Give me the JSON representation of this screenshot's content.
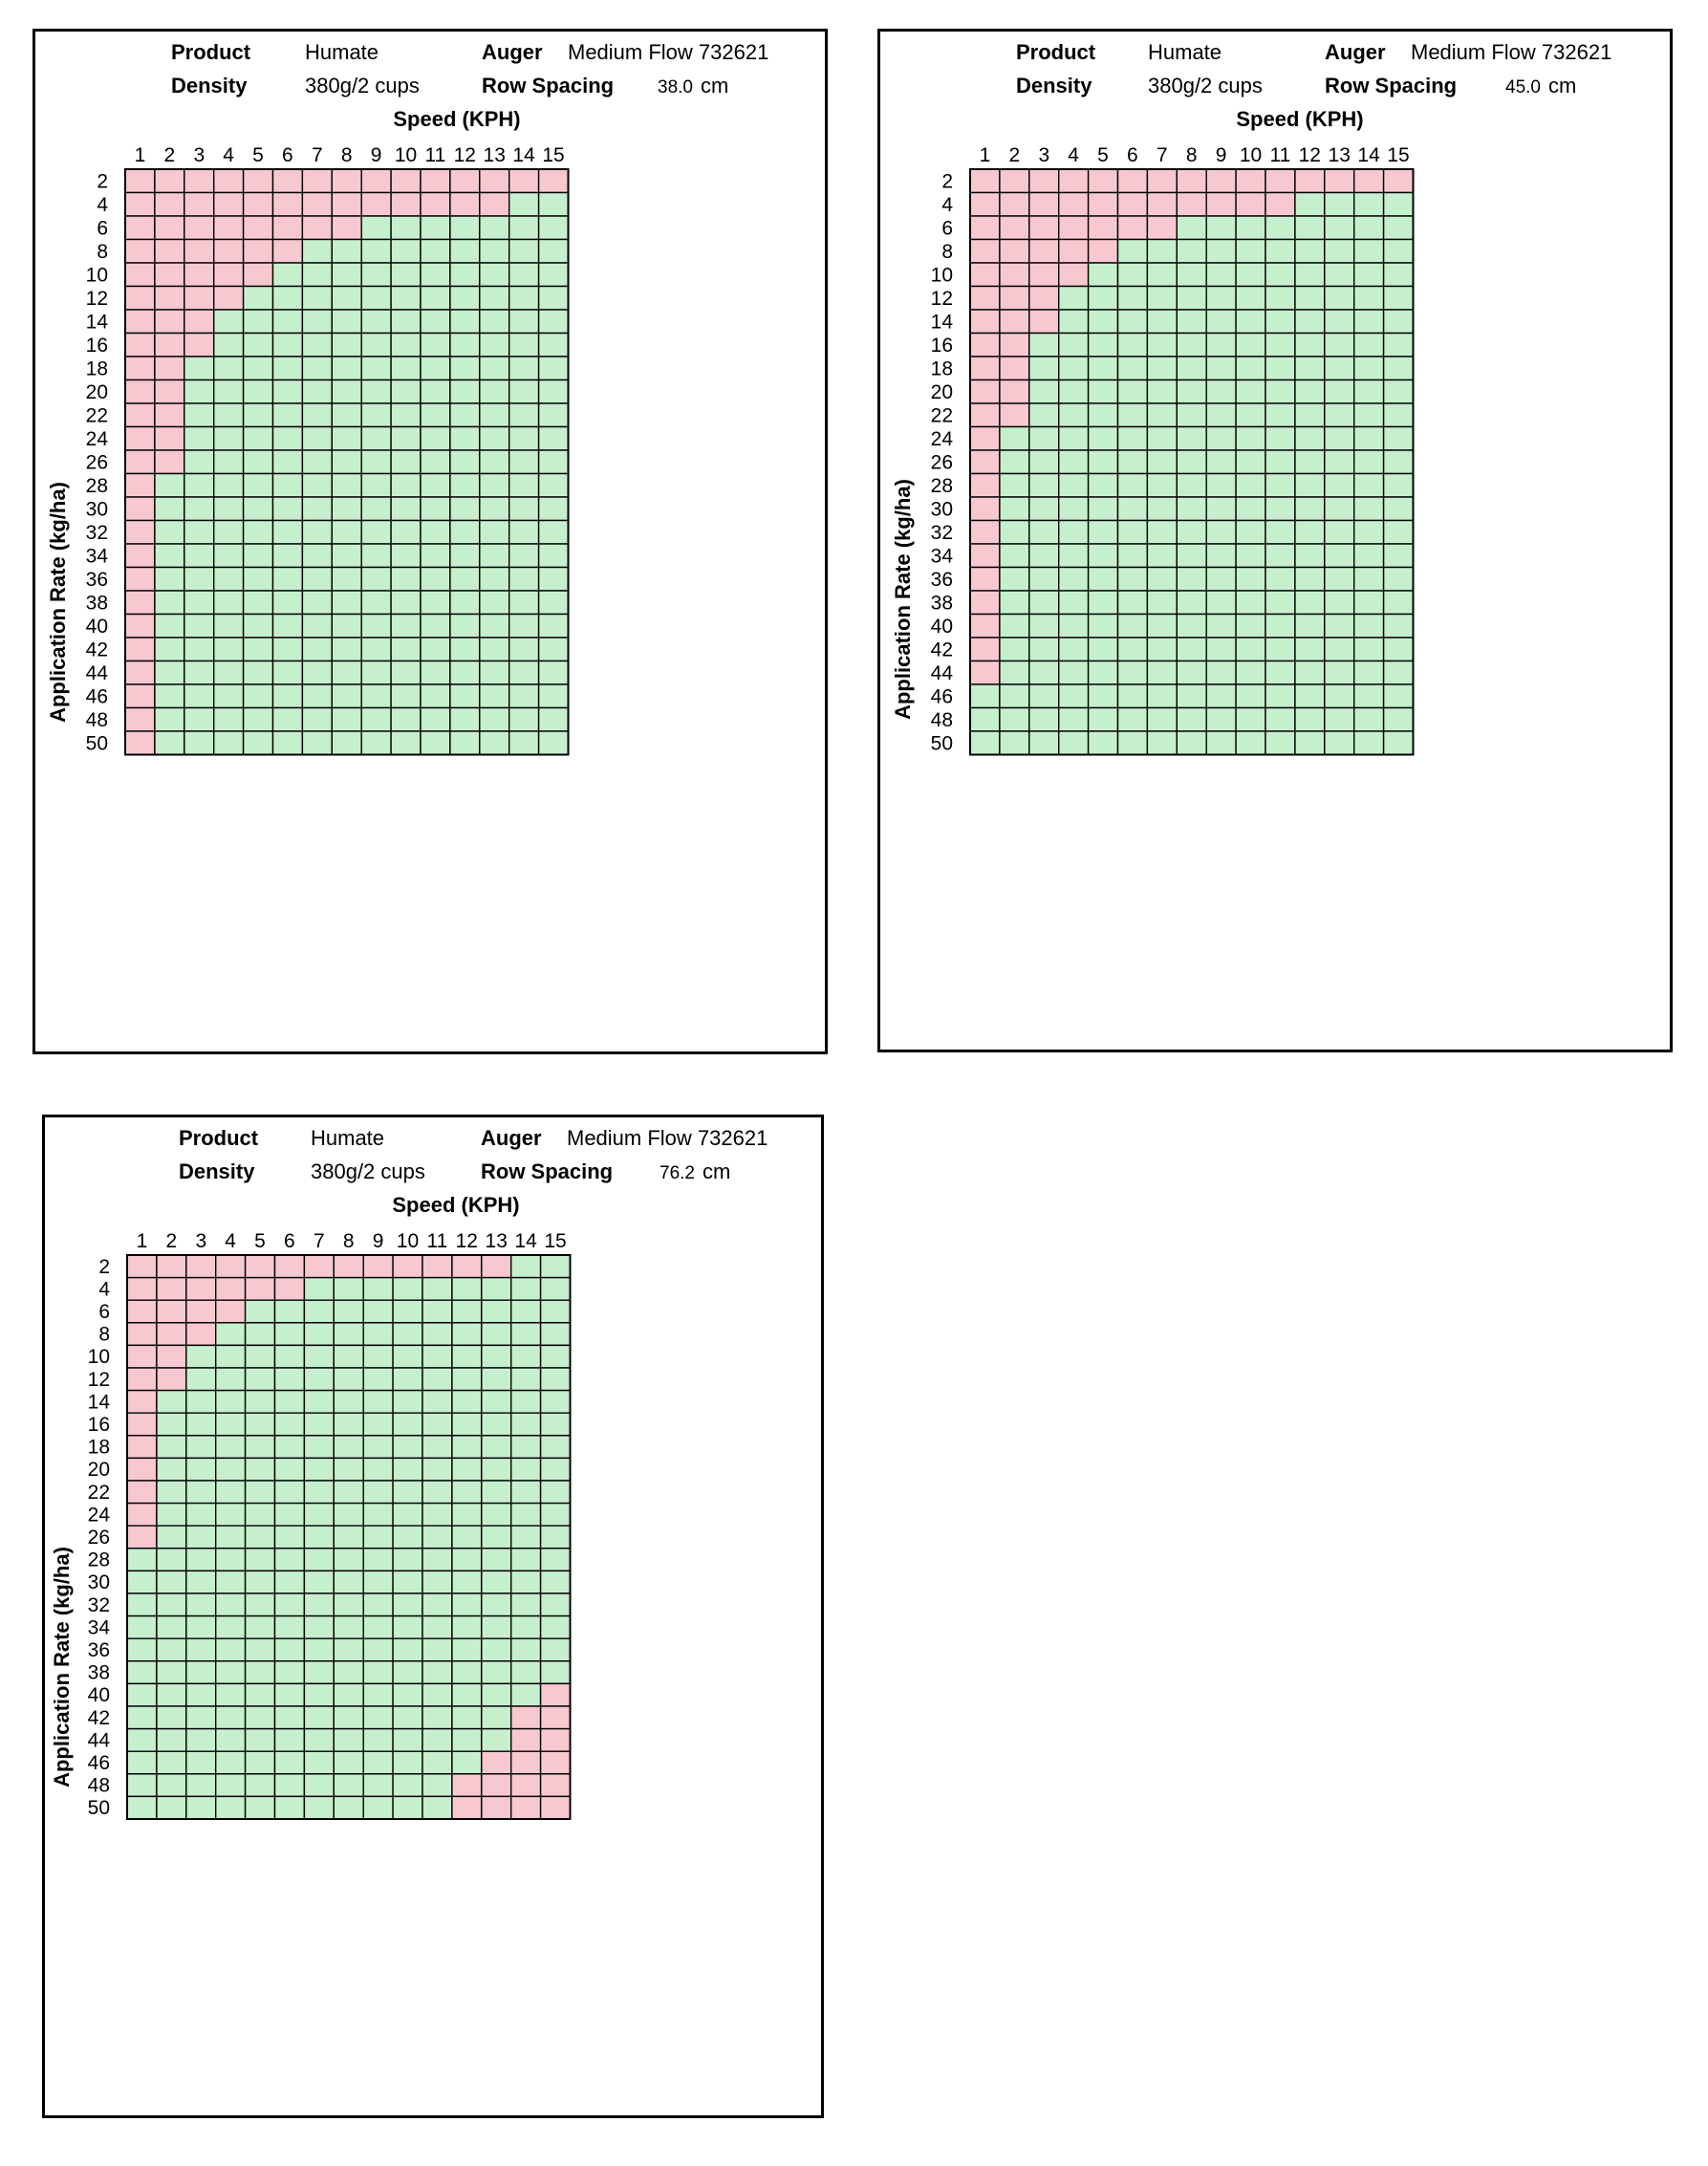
{
  "labels": {
    "product_key": "Product",
    "density_key": "Density",
    "auger_key": "Auger",
    "row_spacing_key": "Row Spacing"
  },
  "colors": {
    "exceeds": "#f8c8d0",
    "ok": "#c6efce",
    "grid": "#000000"
  },
  "panels": [
    {
      "product": "Humate",
      "density": "380g/2 cups",
      "auger": "Medium Flow 732621",
      "row_spacing": "38.0",
      "row_spacing_unit": "cm"
    },
    {
      "product": "Humate",
      "density": "380g/2 cups",
      "auger": "Medium Flow 732621",
      "row_spacing": "45.0",
      "row_spacing_unit": "cm"
    },
    {
      "product": "Humate",
      "density": "380g/2 cups",
      "auger": "Medium Flow 732621",
      "row_spacing": "76.2",
      "row_spacing_unit": "cm"
    }
  ],
  "chart_data": [
    {
      "type": "heatmap",
      "xlabel": "Speed (KPH)",
      "ylabel": "Application Rate (kg/ha)",
      "x": [
        1,
        2,
        3,
        4,
        5,
        6,
        7,
        8,
        9,
        10,
        11,
        12,
        13,
        14,
        15
      ],
      "y": [
        2,
        4,
        6,
        8,
        10,
        12,
        14,
        16,
        18,
        20,
        22,
        24,
        26,
        28,
        30,
        32,
        34,
        36,
        38,
        40,
        42,
        44,
        46,
        48,
        50
      ],
      "legend": {
        "0": "green",
        "1": "pink"
      },
      "cells": [
        [
          1,
          1,
          1,
          1,
          1,
          1,
          1,
          1,
          1,
          1,
          1,
          1,
          1,
          1,
          1
        ],
        [
          1,
          1,
          1,
          1,
          1,
          1,
          1,
          1,
          1,
          1,
          1,
          1,
          1,
          0,
          0
        ],
        [
          1,
          1,
          1,
          1,
          1,
          1,
          1,
          1,
          0,
          0,
          0,
          0,
          0,
          0,
          0
        ],
        [
          1,
          1,
          1,
          1,
          1,
          1,
          0,
          0,
          0,
          0,
          0,
          0,
          0,
          0,
          0
        ],
        [
          1,
          1,
          1,
          1,
          1,
          0,
          0,
          0,
          0,
          0,
          0,
          0,
          0,
          0,
          0
        ],
        [
          1,
          1,
          1,
          1,
          0,
          0,
          0,
          0,
          0,
          0,
          0,
          0,
          0,
          0,
          0
        ],
        [
          1,
          1,
          1,
          0,
          0,
          0,
          0,
          0,
          0,
          0,
          0,
          0,
          0,
          0,
          0
        ],
        [
          1,
          1,
          1,
          0,
          0,
          0,
          0,
          0,
          0,
          0,
          0,
          0,
          0,
          0,
          0
        ],
        [
          1,
          1,
          0,
          0,
          0,
          0,
          0,
          0,
          0,
          0,
          0,
          0,
          0,
          0,
          0
        ],
        [
          1,
          1,
          0,
          0,
          0,
          0,
          0,
          0,
          0,
          0,
          0,
          0,
          0,
          0,
          0
        ],
        [
          1,
          1,
          0,
          0,
          0,
          0,
          0,
          0,
          0,
          0,
          0,
          0,
          0,
          0,
          0
        ],
        [
          1,
          1,
          0,
          0,
          0,
          0,
          0,
          0,
          0,
          0,
          0,
          0,
          0,
          0,
          0
        ],
        [
          1,
          1,
          0,
          0,
          0,
          0,
          0,
          0,
          0,
          0,
          0,
          0,
          0,
          0,
          0
        ],
        [
          1,
          0,
          0,
          0,
          0,
          0,
          0,
          0,
          0,
          0,
          0,
          0,
          0,
          0,
          0
        ],
        [
          1,
          0,
          0,
          0,
          0,
          0,
          0,
          0,
          0,
          0,
          0,
          0,
          0,
          0,
          0
        ],
        [
          1,
          0,
          0,
          0,
          0,
          0,
          0,
          0,
          0,
          0,
          0,
          0,
          0,
          0,
          0
        ],
        [
          1,
          0,
          0,
          0,
          0,
          0,
          0,
          0,
          0,
          0,
          0,
          0,
          0,
          0,
          0
        ],
        [
          1,
          0,
          0,
          0,
          0,
          0,
          0,
          0,
          0,
          0,
          0,
          0,
          0,
          0,
          0
        ],
        [
          1,
          0,
          0,
          0,
          0,
          0,
          0,
          0,
          0,
          0,
          0,
          0,
          0,
          0,
          0
        ],
        [
          1,
          0,
          0,
          0,
          0,
          0,
          0,
          0,
          0,
          0,
          0,
          0,
          0,
          0,
          0
        ],
        [
          1,
          0,
          0,
          0,
          0,
          0,
          0,
          0,
          0,
          0,
          0,
          0,
          0,
          0,
          0
        ],
        [
          1,
          0,
          0,
          0,
          0,
          0,
          0,
          0,
          0,
          0,
          0,
          0,
          0,
          0,
          0
        ],
        [
          1,
          0,
          0,
          0,
          0,
          0,
          0,
          0,
          0,
          0,
          0,
          0,
          0,
          0,
          0
        ],
        [
          1,
          0,
          0,
          0,
          0,
          0,
          0,
          0,
          0,
          0,
          0,
          0,
          0,
          0,
          0
        ],
        [
          1,
          0,
          0,
          0,
          0,
          0,
          0,
          0,
          0,
          0,
          0,
          0,
          0,
          0,
          0
        ]
      ]
    },
    {
      "type": "heatmap",
      "xlabel": "Speed (KPH)",
      "ylabel": "Application Rate (kg/ha)",
      "x": [
        1,
        2,
        3,
        4,
        5,
        6,
        7,
        8,
        9,
        10,
        11,
        12,
        13,
        14,
        15
      ],
      "y": [
        2,
        4,
        6,
        8,
        10,
        12,
        14,
        16,
        18,
        20,
        22,
        24,
        26,
        28,
        30,
        32,
        34,
        36,
        38,
        40,
        42,
        44,
        46,
        48,
        50
      ],
      "legend": {
        "0": "green",
        "1": "pink"
      },
      "cells": [
        [
          1,
          1,
          1,
          1,
          1,
          1,
          1,
          1,
          1,
          1,
          1,
          1,
          1,
          1,
          1
        ],
        [
          1,
          1,
          1,
          1,
          1,
          1,
          1,
          1,
          1,
          1,
          1,
          0,
          0,
          0,
          0
        ],
        [
          1,
          1,
          1,
          1,
          1,
          1,
          1,
          0,
          0,
          0,
          0,
          0,
          0,
          0,
          0
        ],
        [
          1,
          1,
          1,
          1,
          1,
          0,
          0,
          0,
          0,
          0,
          0,
          0,
          0,
          0,
          0
        ],
        [
          1,
          1,
          1,
          1,
          0,
          0,
          0,
          0,
          0,
          0,
          0,
          0,
          0,
          0,
          0
        ],
        [
          1,
          1,
          1,
          0,
          0,
          0,
          0,
          0,
          0,
          0,
          0,
          0,
          0,
          0,
          0
        ],
        [
          1,
          1,
          1,
          0,
          0,
          0,
          0,
          0,
          0,
          0,
          0,
          0,
          0,
          0,
          0
        ],
        [
          1,
          1,
          0,
          0,
          0,
          0,
          0,
          0,
          0,
          0,
          0,
          0,
          0,
          0,
          0
        ],
        [
          1,
          1,
          0,
          0,
          0,
          0,
          0,
          0,
          0,
          0,
          0,
          0,
          0,
          0,
          0
        ],
        [
          1,
          1,
          0,
          0,
          0,
          0,
          0,
          0,
          0,
          0,
          0,
          0,
          0,
          0,
          0
        ],
        [
          1,
          1,
          0,
          0,
          0,
          0,
          0,
          0,
          0,
          0,
          0,
          0,
          0,
          0,
          0
        ],
        [
          1,
          0,
          0,
          0,
          0,
          0,
          0,
          0,
          0,
          0,
          0,
          0,
          0,
          0,
          0
        ],
        [
          1,
          0,
          0,
          0,
          0,
          0,
          0,
          0,
          0,
          0,
          0,
          0,
          0,
          0,
          0
        ],
        [
          1,
          0,
          0,
          0,
          0,
          0,
          0,
          0,
          0,
          0,
          0,
          0,
          0,
          0,
          0
        ],
        [
          1,
          0,
          0,
          0,
          0,
          0,
          0,
          0,
          0,
          0,
          0,
          0,
          0,
          0,
          0
        ],
        [
          1,
          0,
          0,
          0,
          0,
          0,
          0,
          0,
          0,
          0,
          0,
          0,
          0,
          0,
          0
        ],
        [
          1,
          0,
          0,
          0,
          0,
          0,
          0,
          0,
          0,
          0,
          0,
          0,
          0,
          0,
          0
        ],
        [
          1,
          0,
          0,
          0,
          0,
          0,
          0,
          0,
          0,
          0,
          0,
          0,
          0,
          0,
          0
        ],
        [
          1,
          0,
          0,
          0,
          0,
          0,
          0,
          0,
          0,
          0,
          0,
          0,
          0,
          0,
          0
        ],
        [
          1,
          0,
          0,
          0,
          0,
          0,
          0,
          0,
          0,
          0,
          0,
          0,
          0,
          0,
          0
        ],
        [
          1,
          0,
          0,
          0,
          0,
          0,
          0,
          0,
          0,
          0,
          0,
          0,
          0,
          0,
          0
        ],
        [
          1,
          0,
          0,
          0,
          0,
          0,
          0,
          0,
          0,
          0,
          0,
          0,
          0,
          0,
          0
        ],
        [
          0,
          0,
          0,
          0,
          0,
          0,
          0,
          0,
          0,
          0,
          0,
          0,
          0,
          0,
          0
        ],
        [
          0,
          0,
          0,
          0,
          0,
          0,
          0,
          0,
          0,
          0,
          0,
          0,
          0,
          0,
          0
        ],
        [
          0,
          0,
          0,
          0,
          0,
          0,
          0,
          0,
          0,
          0,
          0,
          0,
          0,
          0,
          0
        ]
      ]
    },
    {
      "type": "heatmap",
      "xlabel": "Speed (KPH)",
      "ylabel": "Application Rate (kg/ha)",
      "x": [
        1,
        2,
        3,
        4,
        5,
        6,
        7,
        8,
        9,
        10,
        11,
        12,
        13,
        14,
        15
      ],
      "y": [
        2,
        4,
        6,
        8,
        10,
        12,
        14,
        16,
        18,
        20,
        22,
        24,
        26,
        28,
        30,
        32,
        34,
        36,
        38,
        40,
        42,
        44,
        46,
        48,
        50
      ],
      "legend": {
        "0": "green",
        "1": "pink"
      },
      "cells": [
        [
          1,
          1,
          1,
          1,
          1,
          1,
          1,
          1,
          1,
          1,
          1,
          1,
          1,
          0,
          0
        ],
        [
          1,
          1,
          1,
          1,
          1,
          1,
          0,
          0,
          0,
          0,
          0,
          0,
          0,
          0,
          0
        ],
        [
          1,
          1,
          1,
          1,
          0,
          0,
          0,
          0,
          0,
          0,
          0,
          0,
          0,
          0,
          0
        ],
        [
          1,
          1,
          1,
          0,
          0,
          0,
          0,
          0,
          0,
          0,
          0,
          0,
          0,
          0,
          0
        ],
        [
          1,
          1,
          0,
          0,
          0,
          0,
          0,
          0,
          0,
          0,
          0,
          0,
          0,
          0,
          0
        ],
        [
          1,
          1,
          0,
          0,
          0,
          0,
          0,
          0,
          0,
          0,
          0,
          0,
          0,
          0,
          0
        ],
        [
          1,
          0,
          0,
          0,
          0,
          0,
          0,
          0,
          0,
          0,
          0,
          0,
          0,
          0,
          0
        ],
        [
          1,
          0,
          0,
          0,
          0,
          0,
          0,
          0,
          0,
          0,
          0,
          0,
          0,
          0,
          0
        ],
        [
          1,
          0,
          0,
          0,
          0,
          0,
          0,
          0,
          0,
          0,
          0,
          0,
          0,
          0,
          0
        ],
        [
          1,
          0,
          0,
          0,
          0,
          0,
          0,
          0,
          0,
          0,
          0,
          0,
          0,
          0,
          0
        ],
        [
          1,
          0,
          0,
          0,
          0,
          0,
          0,
          0,
          0,
          0,
          0,
          0,
          0,
          0,
          0
        ],
        [
          1,
          0,
          0,
          0,
          0,
          0,
          0,
          0,
          0,
          0,
          0,
          0,
          0,
          0,
          0
        ],
        [
          1,
          0,
          0,
          0,
          0,
          0,
          0,
          0,
          0,
          0,
          0,
          0,
          0,
          0,
          0
        ],
        [
          0,
          0,
          0,
          0,
          0,
          0,
          0,
          0,
          0,
          0,
          0,
          0,
          0,
          0,
          0
        ],
        [
          0,
          0,
          0,
          0,
          0,
          0,
          0,
          0,
          0,
          0,
          0,
          0,
          0,
          0,
          0
        ],
        [
          0,
          0,
          0,
          0,
          0,
          0,
          0,
          0,
          0,
          0,
          0,
          0,
          0,
          0,
          0
        ],
        [
          0,
          0,
          0,
          0,
          0,
          0,
          0,
          0,
          0,
          0,
          0,
          0,
          0,
          0,
          0
        ],
        [
          0,
          0,
          0,
          0,
          0,
          0,
          0,
          0,
          0,
          0,
          0,
          0,
          0,
          0,
          0
        ],
        [
          0,
          0,
          0,
          0,
          0,
          0,
          0,
          0,
          0,
          0,
          0,
          0,
          0,
          0,
          0
        ],
        [
          0,
          0,
          0,
          0,
          0,
          0,
          0,
          0,
          0,
          0,
          0,
          0,
          0,
          0,
          1
        ],
        [
          0,
          0,
          0,
          0,
          0,
          0,
          0,
          0,
          0,
          0,
          0,
          0,
          0,
          1,
          1
        ],
        [
          0,
          0,
          0,
          0,
          0,
          0,
          0,
          0,
          0,
          0,
          0,
          0,
          0,
          1,
          1
        ],
        [
          0,
          0,
          0,
          0,
          0,
          0,
          0,
          0,
          0,
          0,
          0,
          0,
          1,
          1,
          1
        ],
        [
          0,
          0,
          0,
          0,
          0,
          0,
          0,
          0,
          0,
          0,
          0,
          1,
          1,
          1,
          1
        ],
        [
          0,
          0,
          0,
          0,
          0,
          0,
          0,
          0,
          0,
          0,
          0,
          1,
          1,
          1,
          1
        ]
      ]
    }
  ]
}
